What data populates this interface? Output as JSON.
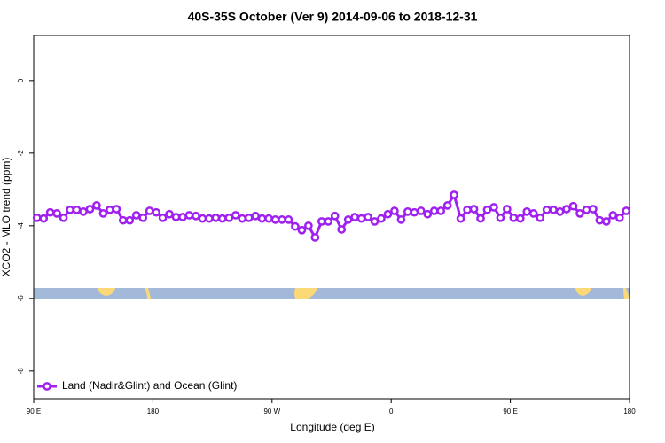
{
  "chart_data": {
    "type": "line",
    "title": "40S-35S October (Ver 9)   2014-09-06 to 2018-12-31",
    "x_label": "Longitude (deg E)",
    "y_label": "XCO2 - MLO trend (ppm)",
    "xlim": [
      90,
      540
    ],
    "xticks": [
      {
        "value": 90,
        "label": "90 E"
      },
      180,
      {
        "value": 270,
        "label": "90 W"
      },
      {
        "value": 360,
        "label": "0"
      },
      {
        "value": 450,
        "label": "90 E"
      },
      {
        "value": 540,
        "label": "180"
      }
    ],
    "ylim": [
      -8.76,
      1.24
    ],
    "yticks": [
      0,
      -2,
      -4,
      -6,
      -8
    ],
    "legend": "bottom-left",
    "x": [
      92.5,
      97.5,
      102.5,
      107.5,
      112.5,
      117.5,
      122.5,
      127.5,
      132.5,
      137.5,
      142.5,
      147.5,
      152.5,
      157.5,
      162.5,
      167.5,
      172.5,
      177.5,
      182.5,
      187.5,
      192.5,
      197.5,
      202.5,
      207.5,
      212.5,
      217.5,
      222.5,
      227.5,
      232.5,
      237.5,
      242.5,
      247.5,
      252.5,
      257.5,
      262.5,
      267.5,
      272.5,
      277.5,
      282.5,
      287.5,
      292.5,
      297.5,
      302.5,
      307.5,
      312.5,
      317.5,
      322.5,
      327.5,
      332.5,
      337.5,
      342.5,
      347.5,
      352.5,
      357.5,
      362.5,
      367.5,
      372.5,
      377.5,
      382.5,
      387.5,
      392.5,
      397.5,
      402.5,
      407.5,
      412.5,
      417.5,
      422.5,
      427.5,
      432.5,
      437.5,
      442.5,
      447.5,
      452.5,
      457.5,
      462.5,
      467.5,
      472.5,
      477.5,
      482.5,
      487.5,
      492.5,
      497.5,
      502.5,
      507.5,
      512.5,
      517.5,
      522.5,
      527.5,
      532.5,
      537.5
    ],
    "series": [
      {
        "name": "Land (Nadir&Glint) and Ocean (Glint)",
        "color": "#a020f0",
        "values": [
          -3.78,
          -3.8,
          -3.63,
          -3.66,
          -3.78,
          -3.56,
          -3.56,
          -3.61,
          -3.54,
          -3.44,
          -3.66,
          -3.56,
          -3.54,
          -3.85,
          -3.85,
          -3.71,
          -3.78,
          -3.59,
          -3.63,
          -3.78,
          -3.68,
          -3.76,
          -3.76,
          -3.71,
          -3.73,
          -3.8,
          -3.8,
          -3.78,
          -3.8,
          -3.78,
          -3.71,
          -3.8,
          -3.78,
          -3.73,
          -3.8,
          -3.8,
          -3.83,
          -3.83,
          -3.83,
          -4.02,
          -4.12,
          -4.0,
          -4.32,
          -3.88,
          -3.88,
          -3.73,
          -4.1,
          -3.83,
          -3.76,
          -3.8,
          -3.76,
          -3.88,
          -3.8,
          -3.68,
          -3.59,
          -3.83,
          -3.61,
          -3.63,
          -3.59,
          -3.68,
          -3.59,
          -3.59,
          -3.44,
          -3.15,
          -3.8,
          -3.56,
          -3.54,
          -3.8,
          -3.56,
          -3.49,
          -3.78,
          -3.54,
          -3.78,
          -3.8,
          -3.61,
          -3.66,
          -3.78,
          -3.56,
          -3.56,
          -3.61,
          -3.54,
          -3.46,
          -3.66,
          -3.56,
          -3.54,
          -3.85,
          -3.88,
          -3.71,
          -3.78,
          -3.59
        ]
      }
    ]
  }
}
